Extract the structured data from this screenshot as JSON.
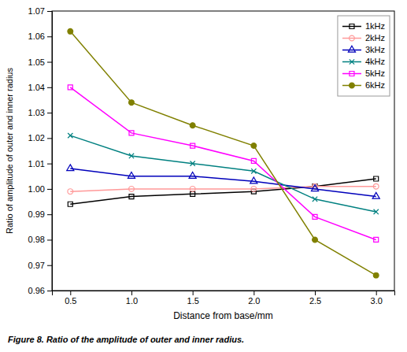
{
  "chart_data": {
    "type": "line",
    "x": [
      0.5,
      1.0,
      1.5,
      2.0,
      2.5,
      3.0
    ],
    "series": [
      {
        "name": "1kHz",
        "color": "#000000",
        "marker": "square",
        "line_style": "solid",
        "values": [
          0.994,
          0.997,
          0.998,
          0.999,
          1.001,
          1.004
        ]
      },
      {
        "name": "2kHz",
        "color": "#ff9999",
        "marker": "circle",
        "line_style": "solid",
        "values": [
          0.999,
          1.0,
          1.0,
          1.0,
          1.001,
          1.001
        ]
      },
      {
        "name": "3kHz",
        "color": "#0000bb",
        "marker": "triangle",
        "line_style": "solid",
        "values": [
          1.008,
          1.005,
          1.005,
          1.003,
          1.0,
          0.997
        ]
      },
      {
        "name": "4kHz",
        "color": "#008080",
        "marker": "x",
        "line_style": "solid",
        "values": [
          1.021,
          1.013,
          1.01,
          1.007,
          0.996,
          0.991
        ]
      },
      {
        "name": "5kHz",
        "color": "#ff00ff",
        "marker": "square",
        "line_style": "solid",
        "values": [
          1.04,
          1.022,
          1.017,
          1.011,
          0.989,
          0.98
        ]
      },
      {
        "name": "6kHz",
        "color": "#808000",
        "marker": "filled-circle",
        "line_style": "solid",
        "values": [
          1.062,
          1.034,
          1.025,
          1.017,
          0.98,
          0.966
        ]
      }
    ],
    "x_label": "Distance from base/mm",
    "y_label": "Ratio of amplitude of outer and inner radius",
    "caption": "Figure 8. Ratio of the amplitude of outer and inner radius.",
    "xlim": [
      0.35,
      3.15
    ],
    "ylim": [
      0.96,
      1.07
    ],
    "xticks": [
      0.5,
      {
        "value": 1.0,
        "label": "1.0"
      },
      1.5,
      {
        "value": 2.0,
        "label": "2.0"
      },
      2.5,
      {
        "value": 3.0,
        "label": "3.0"
      }
    ],
    "yticks": [
      0.96,
      0.97,
      0.98,
      0.99,
      {
        "value": 1.0,
        "label": "1.00"
      },
      1.01,
      1.02,
      1.03,
      1.04,
      1.05,
      1.06,
      1.07
    ],
    "grid": false,
    "legend": "top-right"
  }
}
